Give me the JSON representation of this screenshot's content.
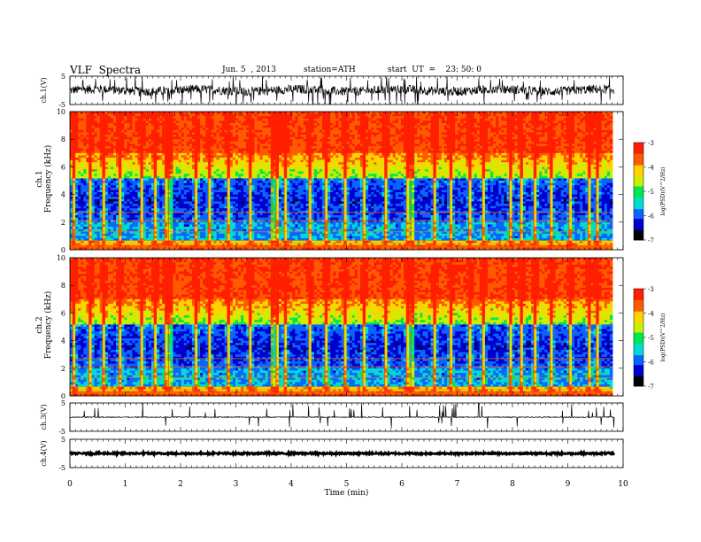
{
  "header": {
    "title": "VLF  Spectra",
    "date": "Jun. 5  , 2013",
    "station": "station=ATH",
    "start": "start  UT  =    23: 50: 0"
  },
  "chart_data": [
    {
      "type": "line",
      "panel": "ch1-waveform",
      "ylabel": "ch.1(V)",
      "yticks": [
        "5",
        "-5"
      ],
      "ylim": [
        -5,
        5
      ],
      "xlim": [
        0,
        10
      ]
    },
    {
      "type": "heatmap",
      "panel": "ch1-spectrogram",
      "ylabel_top": "ch.1",
      "ylabel": "Frequency  (kHz)",
      "yticks": [
        "0",
        "2",
        "4",
        "6",
        "8",
        "10"
      ],
      "ylim": [
        0,
        10
      ],
      "xlim": [
        0,
        10
      ],
      "colorbar": {
        "label": "log(PSD)(V^2/Hz)",
        "ticks": [
          "-3",
          "-4",
          "-5",
          "-6",
          "-7"
        ],
        "range": [
          -7,
          -3
        ]
      }
    },
    {
      "type": "heatmap",
      "panel": "ch2-spectrogram",
      "ylabel_top": "ch.2",
      "ylabel": "Frequency  (kHz)",
      "yticks": [
        "0",
        "2",
        "4",
        "6",
        "8",
        "10"
      ],
      "ylim": [
        0,
        10
      ],
      "xlim": [
        0,
        10
      ],
      "colorbar": {
        "label": "log(PSD)(V^2/Hz)",
        "ticks": [
          "-3",
          "-4",
          "-5",
          "-6",
          "-7"
        ],
        "range": [
          -7,
          -3
        ]
      }
    },
    {
      "type": "line",
      "panel": "ch3-waveform",
      "ylabel": "ch.3(V)",
      "yticks": [
        "5",
        "-5"
      ],
      "ylim": [
        -5,
        5
      ],
      "xlim": [
        0,
        10
      ]
    },
    {
      "type": "line",
      "panel": "ch4-waveform",
      "ylabel": "ch.4(V)",
      "yticks": [
        "5",
        "-5"
      ],
      "ylim": [
        -5,
        5
      ],
      "xlim": [
        0,
        10
      ]
    }
  ],
  "xaxis": {
    "label": "Time  (min)",
    "ticks": [
      "0",
      "1",
      "2",
      "3",
      "4",
      "5",
      "6",
      "7",
      "8",
      "9",
      "10"
    ],
    "range": [
      0,
      10
    ]
  },
  "colors": {
    "trace": "#000000",
    "colormap": [
      "#000000",
      "#0000cc",
      "#0a64ff",
      "#00dcd2",
      "#00e650",
      "#c8f000",
      "#ffd200",
      "#ff5a00",
      "#ff1e00",
      "#ffffff"
    ]
  }
}
